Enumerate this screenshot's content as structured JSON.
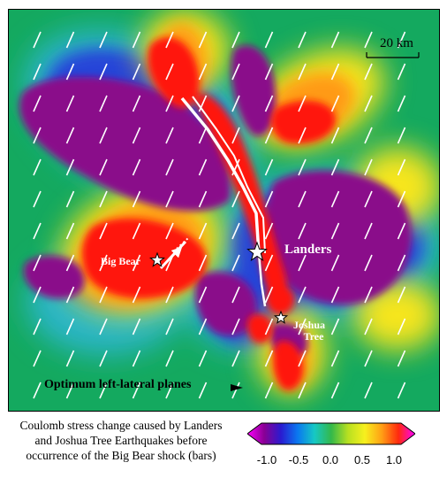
{
  "map": {
    "scale_bar_label": "20 km",
    "locations": [
      {
        "name": "Landers"
      },
      {
        "name": "Big Bear"
      },
      {
        "name": "Joshua Tree",
        "line1": "Joshua",
        "line2": "Tree"
      }
    ],
    "planes_label": "Optimum left-lateral planes"
  },
  "caption": {
    "line1": "Coulomb stress change caused by Landers",
    "line2": "and Joshua Tree Earthquakes before",
    "line3": "occurrence of the Big Bear shock (bars)"
  },
  "colorbar": {
    "ticks": [
      "-1.0",
      "-0.5",
      "0.0",
      "0.5",
      "1.0"
    ],
    "colors": [
      "#ff00ff",
      "#8a0094",
      "#2a1bd0",
      "#0a78f0",
      "#16c8c4",
      "#34b84a",
      "#b8e021",
      "#f7f01e",
      "#ffa015",
      "#ff2a0e",
      "#ff00ff"
    ]
  },
  "palette": {
    "background_green": "#14a95f",
    "stress_shadow_purple": "#8a0e8a",
    "stress_increase_red": "#ff1208"
  }
}
